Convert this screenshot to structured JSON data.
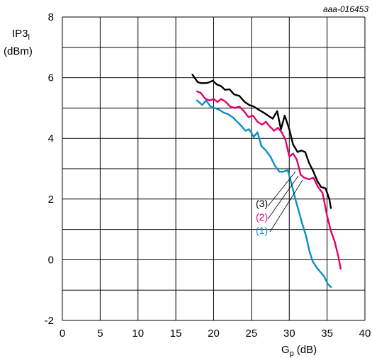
{
  "chart_data": {
    "type": "line",
    "reference": "aaa-016453",
    "ylabel_line1": "IP3",
    "ylabel_sub": "l",
    "ylabel_line2": "(dBm)",
    "xlabel_main": "G",
    "xlabel_sub": "p",
    "xlabel_unit": "(dB)",
    "xlim": [
      0,
      40
    ],
    "ylim": [
      -2,
      8
    ],
    "xticks": [
      "0",
      "5",
      "10",
      "15",
      "20",
      "25",
      "30",
      "35",
      "40"
    ],
    "yticks": [
      "-2",
      "0",
      "2",
      "4",
      "6",
      "8"
    ],
    "grid": true,
    "series": [
      {
        "name": "(3)",
        "color": "#000000",
        "x": [
          17.2,
          17.9,
          18.4,
          19.2,
          19.9,
          20.4,
          21.0,
          21.5,
          22.1,
          22.7,
          23.4,
          24.1,
          24.7,
          25.3,
          25.9,
          26.6,
          27.2,
          27.8,
          28.4,
          28.9,
          29.4,
          30.0,
          30.5,
          31.1,
          31.6,
          32.1,
          32.6,
          33.2,
          33.7,
          34.2,
          34.8,
          35.3,
          35.5
        ],
        "y": [
          6.1,
          5.85,
          5.82,
          5.83,
          5.9,
          5.78,
          5.72,
          5.6,
          5.62,
          5.45,
          5.4,
          5.2,
          5.1,
          5.05,
          4.95,
          4.85,
          4.75,
          4.65,
          4.9,
          4.3,
          4.75,
          4.3,
          3.8,
          3.55,
          3.6,
          3.55,
          3.2,
          2.9,
          2.6,
          2.4,
          2.35,
          2.0,
          1.7
        ]
      },
      {
        "name": "(2)",
        "color": "#e4006e",
        "x": [
          17.8,
          18.3,
          18.9,
          19.5,
          20.0,
          20.5,
          21.0,
          21.6,
          22.2,
          22.8,
          23.4,
          24.0,
          24.6,
          25.2,
          25.8,
          26.4,
          26.9,
          27.4,
          28.0,
          28.5,
          29.0,
          29.5,
          30.0,
          30.5,
          31.0,
          31.5,
          32.0,
          32.6,
          33.2,
          33.8,
          34.4,
          35.0,
          35.5,
          36.0,
          36.5,
          36.8
        ],
        "y": [
          5.55,
          5.5,
          5.3,
          5.25,
          5.3,
          5.2,
          5.3,
          5.2,
          5.05,
          5.0,
          5.05,
          4.9,
          4.7,
          4.75,
          4.55,
          4.45,
          4.55,
          4.4,
          4.25,
          4.35,
          4.2,
          3.95,
          3.4,
          3.5,
          3.3,
          2.8,
          2.7,
          2.65,
          2.7,
          2.4,
          2.2,
          1.45,
          0.95,
          0.6,
          0.1,
          -0.3
        ]
      },
      {
        "name": "(1)",
        "color": "#0a8ec2",
        "x": [
          17.8,
          18.5,
          19.0,
          19.6,
          20.1,
          20.7,
          21.3,
          21.9,
          22.5,
          23.1,
          23.7,
          24.2,
          24.7,
          25.3,
          25.8,
          26.3,
          26.9,
          27.5,
          28.1,
          28.7,
          29.2,
          29.8,
          30.3,
          30.8,
          31.2,
          31.7,
          32.2,
          32.7,
          33.1,
          33.6,
          34.1,
          34.6,
          35.1,
          35.5
        ],
        "y": [
          5.25,
          5.1,
          5.25,
          5.05,
          5.0,
          4.95,
          4.85,
          4.8,
          4.7,
          4.55,
          4.4,
          4.25,
          4.3,
          4.05,
          4.2,
          3.75,
          3.6,
          3.4,
          3.1,
          2.9,
          2.9,
          2.95,
          2.5,
          2.0,
          1.65,
          1.2,
          0.8,
          0.25,
          -0.05,
          -0.25,
          -0.4,
          -0.55,
          -0.8,
          -0.9
        ]
      }
    ]
  }
}
